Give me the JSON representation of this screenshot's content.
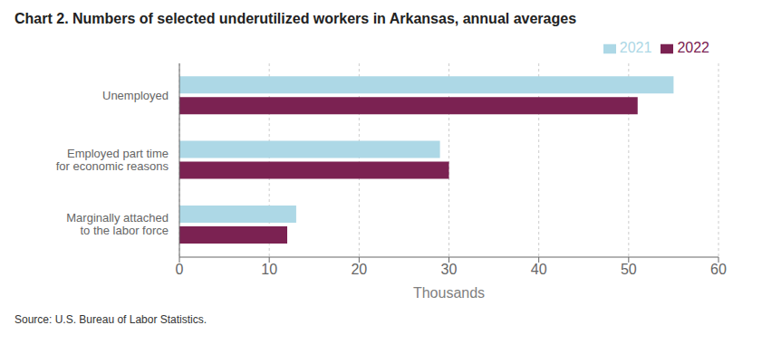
{
  "chart_data": {
    "type": "bar",
    "orientation": "horizontal",
    "title": "Chart 2. Numbers of selected underutilized workers in Arkansas, annual averages",
    "categories": [
      "Unemployed",
      "Employed part time\nfor economic reasons",
      "Marginally attached\nto the labor force"
    ],
    "series": [
      {
        "name": "2021",
        "color": "#add8e6",
        "values": [
          55,
          29,
          13
        ]
      },
      {
        "name": "2022",
        "color": "#7b2252",
        "values": [
          51,
          30,
          12
        ]
      }
    ],
    "xlabel": "Thousands",
    "xlim": [
      0,
      60
    ],
    "xticks": [
      0,
      10,
      20,
      30,
      40,
      50,
      60
    ],
    "grid": true,
    "legend": "upper right",
    "source": "Source: U.S. Bureau of Labor Statistics."
  }
}
